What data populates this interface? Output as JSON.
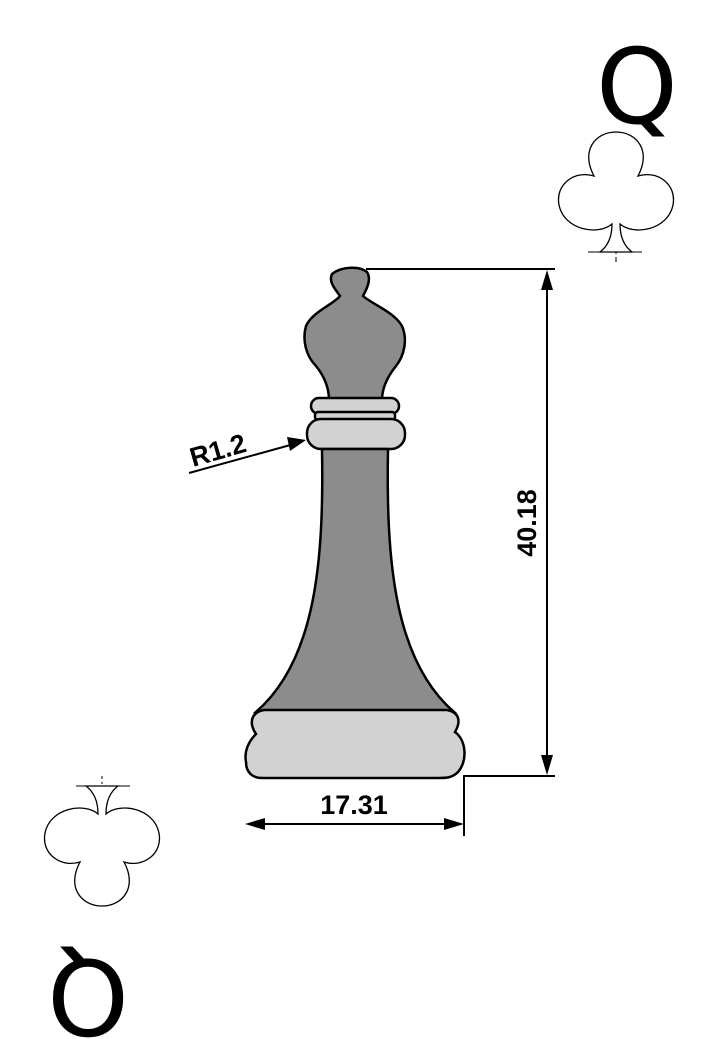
{
  "card": {
    "rank": "Q",
    "suit": "club-icon"
  },
  "dimensions": {
    "height_label": "40.18",
    "width_label": "17.31",
    "radius_label": "R1.2"
  },
  "colors": {
    "piece_body": "#8c8c8c",
    "piece_rings": "#d2d2d2",
    "outline": "#000000",
    "background": "#ffffff"
  }
}
